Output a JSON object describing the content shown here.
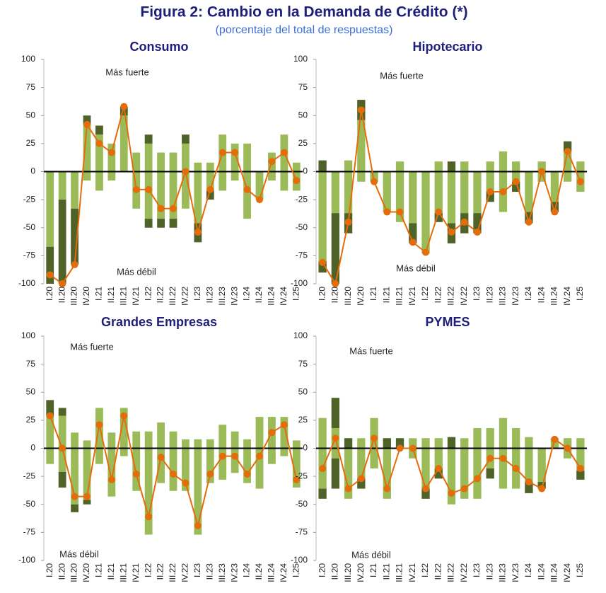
{
  "title": "Figura 2: Cambio en la Demanda de Crédito (*)",
  "subtitle": "(porcentaje del total de respuestas)",
  "chart_data": [
    {
      "type": "bar",
      "title": "Consumo",
      "annotations": [
        "Más fuerte",
        "Más débil"
      ],
      "categories": [
        "I.20",
        "II.20",
        "III.20",
        "IV.20",
        "I.21",
        "II.21",
        "III.21",
        "IV.21",
        "I.22",
        "II.22",
        "III.22",
        "IV.22",
        "I.23",
        "II.23",
        "III.23",
        "IV.23",
        "I.24",
        "II.24",
        "III.24",
        "IV.24",
        "I.25"
      ],
      "ylim": [
        -100,
        100
      ],
      "yticks": [
        100,
        75,
        50,
        25,
        0,
        -25,
        -50,
        -75,
        -100
      ],
      "series": [
        {
          "color": "#9bbb59",
          "values": [
            0,
            0,
            0,
            42,
            33,
            25,
            50,
            17,
            25,
            17,
            17,
            25,
            8,
            8,
            33,
            25,
            25,
            0,
            17,
            33,
            8
          ]
        },
        {
          "color": "#4f6228",
          "values": [
            0,
            0,
            0,
            8,
            8,
            0,
            8,
            0,
            8,
            0,
            0,
            8,
            0,
            0,
            0,
            0,
            0,
            0,
            0,
            0,
            0
          ]
        },
        {
          "color": "#9bbb59",
          "values": [
            -67,
            -25,
            -33,
            -8,
            -17,
            -8,
            0,
            -33,
            -42,
            -42,
            -42,
            -33,
            -46,
            -17,
            -17,
            -8,
            -42,
            -25,
            -8,
            -17,
            -17
          ]
        },
        {
          "color": "#4f6228",
          "values": [
            -33,
            -75,
            -50,
            0,
            0,
            0,
            0,
            0,
            -8,
            -8,
            -8,
            0,
            -17,
            -8,
            0,
            0,
            0,
            0,
            0,
            0,
            0
          ]
        },
        {
          "type": "line",
          "color": "#e46c0a",
          "values": [
            -92,
            -100,
            -83,
            42,
            25,
            17,
            58,
            -16,
            -16,
            -33,
            -33,
            0,
            -54,
            -16,
            17,
            17,
            -16,
            -25,
            9,
            17,
            -8
          ]
        }
      ]
    },
    {
      "type": "bar",
      "title": "Hipotecario",
      "annotations": [
        "Más fuerte",
        "Más débil"
      ],
      "categories": [
        "I.20",
        "II.20",
        "III.20",
        "IV.20",
        "I.21",
        "II.21",
        "III.21",
        "IV.21",
        "I.22",
        "II.22",
        "III.22",
        "IV.22",
        "I.23",
        "II.23",
        "III.23",
        "IV.23",
        "I.24",
        "II.24",
        "III.24",
        "IV.24",
        "I.25"
      ],
      "ylim": [
        -100,
        100
      ],
      "yticks": [
        100,
        75,
        50,
        25,
        0,
        -25,
        -50,
        -75,
        -100
      ],
      "series": [
        {
          "color": "#9bbb59",
          "values": [
            0,
            0,
            10,
            46,
            0,
            0,
            9,
            0,
            0,
            9,
            0,
            9,
            0,
            9,
            18,
            9,
            0,
            9,
            0,
            18,
            9
          ]
        },
        {
          "color": "#4f6228",
          "values": [
            10,
            0,
            0,
            18,
            0,
            0,
            0,
            0,
            0,
            0,
            9,
            0,
            0,
            0,
            0,
            0,
            0,
            0,
            0,
            9,
            0
          ]
        },
        {
          "color": "#9bbb59",
          "values": [
            -80,
            -37,
            -37,
            -9,
            -9,
            -36,
            -45,
            -46,
            -73,
            -37,
            -46,
            -37,
            -37,
            -18,
            -36,
            -9,
            -36,
            -9,
            -27,
            -9,
            -18
          ]
        },
        {
          "color": "#4f6228",
          "values": [
            -10,
            -63,
            -18,
            0,
            0,
            0,
            0,
            -18,
            0,
            -8,
            -18,
            -18,
            -18,
            -9,
            0,
            -9,
            -10,
            0,
            -9,
            0,
            0
          ]
        },
        {
          "type": "line",
          "color": "#e46c0a",
          "values": [
            -81,
            -100,
            -45,
            55,
            -9,
            -36,
            -36,
            -63,
            -72,
            -36,
            -54,
            -45,
            -54,
            -18,
            -18,
            -9,
            -45,
            0,
            -36,
            18,
            -9
          ]
        }
      ]
    },
    {
      "type": "bar",
      "title": "Grandes Empresas",
      "annotations": [
        "Más fuerte",
        "Más débil"
      ],
      "categories": [
        "I.20",
        "II.20",
        "III.20",
        "IV.20",
        "I.21",
        "II.21",
        "III.21",
        "IV.21",
        "I.22",
        "II.22",
        "III.22",
        "IV.22",
        "I.23",
        "II.23",
        "III.23",
        "IV.23",
        "I.24",
        "II.24",
        "III.24",
        "IV.24",
        "I.25"
      ],
      "ylim": [
        -100,
        100
      ],
      "yticks": [
        100,
        75,
        50,
        25,
        0,
        -25,
        -50,
        -75,
        -100
      ],
      "series": [
        {
          "color": "#9bbb59",
          "values": [
            29,
            29,
            14,
            7,
            36,
            14,
            36,
            15,
            15,
            23,
            15,
            8,
            8,
            8,
            21,
            15,
            8,
            28,
            28,
            28,
            7
          ]
        },
        {
          "color": "#4f6228",
          "values": [
            14,
            7,
            0,
            0,
            0,
            0,
            0,
            0,
            0,
            0,
            0,
            0,
            0,
            0,
            0,
            0,
            0,
            0,
            0,
            0,
            0
          ]
        },
        {
          "color": "#9bbb59",
          "values": [
            -14,
            -21,
            -50,
            -46,
            -14,
            -43,
            -7,
            -38,
            -77,
            -31,
            -38,
            -38,
            -77,
            -31,
            -28,
            -22,
            -31,
            -36,
            -14,
            -7,
            -35
          ]
        },
        {
          "color": "#4f6228",
          "values": [
            0,
            -14,
            -7,
            -4,
            0,
            0,
            0,
            0,
            0,
            0,
            0,
            0,
            0,
            0,
            0,
            0,
            0,
            0,
            0,
            0,
            0
          ]
        },
        {
          "type": "line",
          "color": "#e46c0a",
          "values": [
            29,
            0,
            -43,
            -43,
            21,
            -28,
            29,
            -23,
            -61,
            -8,
            -23,
            -31,
            -69,
            -23,
            -7,
            -7,
            -23,
            -7,
            14,
            21,
            -28
          ]
        }
      ]
    },
    {
      "type": "bar",
      "title": "PYMES",
      "annotations": [
        "Más fuerte",
        "Más débil"
      ],
      "categories": [
        "I.20",
        "II.20",
        "III.20",
        "IV.20",
        "I.21",
        "II.21",
        "III.21",
        "IV.21",
        "I.22",
        "II.22",
        "III.22",
        "IV.22",
        "I.23",
        "II.23",
        "III.23",
        "IV.23",
        "I.24",
        "II.24",
        "III.24",
        "IV.24",
        "I.25"
      ],
      "ylim": [
        -100,
        100
      ],
      "yticks": [
        100,
        75,
        50,
        25,
        0,
        -25,
        -50,
        -75,
        -100
      ],
      "series": [
        {
          "color": "#9bbb59",
          "values": [
            27,
            18,
            0,
            9,
            27,
            0,
            0,
            9,
            9,
            9,
            0,
            9,
            18,
            18,
            27,
            18,
            10,
            0,
            9,
            9,
            9
          ]
        },
        {
          "color": "#4f6228",
          "values": [
            0,
            27,
            9,
            0,
            0,
            9,
            9,
            0,
            0,
            0,
            10,
            0,
            0,
            0,
            0,
            0,
            0,
            0,
            0,
            0,
            0
          ]
        },
        {
          "color": "#9bbb59",
          "values": [
            -36,
            -9,
            -45,
            -27,
            -18,
            -45,
            0,
            -9,
            -36,
            -18,
            -50,
            -45,
            -45,
            -18,
            -36,
            -36,
            -30,
            -30,
            0,
            -9,
            -20
          ]
        },
        {
          "color": "#4f6228",
          "values": [
            -9,
            -27,
            0,
            -9,
            0,
            0,
            0,
            0,
            -9,
            -9,
            0,
            0,
            0,
            -9,
            0,
            0,
            -10,
            -6,
            0,
            0,
            -8
          ]
        },
        {
          "type": "line",
          "color": "#e46c0a",
          "values": [
            -18,
            9,
            -36,
            -27,
            9,
            -36,
            0,
            0,
            -36,
            -18,
            -40,
            -36,
            -27,
            -9,
            -9,
            -18,
            -30,
            -36,
            8,
            0,
            -18
          ]
        }
      ]
    }
  ]
}
